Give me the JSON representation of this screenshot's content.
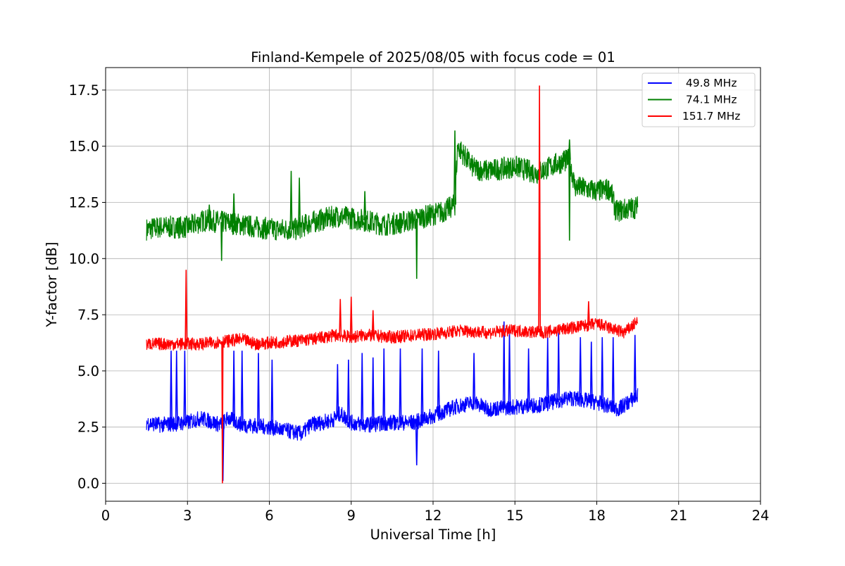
{
  "chart_data": {
    "type": "line",
    "title": "Finland-Kempele of 2025/08/05 with focus code = 01",
    "xlabel": "Universal Time [h]",
    "ylabel": "Y-factor [dB]",
    "xlim": [
      0,
      24
    ],
    "ylim": [
      -0.8,
      18.5
    ],
    "x_ticks": [
      0,
      3,
      6,
      9,
      12,
      15,
      18,
      21,
      24
    ],
    "x_tick_labels": [
      "0",
      "3",
      "6",
      "9",
      "12",
      "15",
      "18",
      "21",
      "24"
    ],
    "y_ticks": [
      0,
      2.5,
      5,
      7.5,
      10,
      12.5,
      15,
      17.5
    ],
    "y_tick_labels": [
      "0.0",
      "2.5",
      "5.0",
      "7.5",
      "10.0",
      "12.5",
      "15.0",
      "17.5"
    ],
    "grid": true,
    "legend_position": "top-right",
    "series": [
      {
        "name": "  49.8 MHz",
        "color": "#0000ff",
        "noise": 0.35,
        "points": [
          [
            1.5,
            2.7
          ],
          [
            2.0,
            2.6
          ],
          [
            3.0,
            2.7
          ],
          [
            3.5,
            2.9
          ],
          [
            4.2,
            2.6
          ],
          [
            4.5,
            2.9
          ],
          [
            5.0,
            2.6
          ],
          [
            6.0,
            2.5
          ],
          [
            7.2,
            2.2
          ],
          [
            7.5,
            2.6
          ],
          [
            8.3,
            2.8
          ],
          [
            8.6,
            3.1
          ],
          [
            9.0,
            2.7
          ],
          [
            9.5,
            2.6
          ],
          [
            10.5,
            2.7
          ],
          [
            11.3,
            2.7
          ],
          [
            12.0,
            3.0
          ],
          [
            12.8,
            3.4
          ],
          [
            13.5,
            3.6
          ],
          [
            14.0,
            3.3
          ],
          [
            15.0,
            3.4
          ],
          [
            16.0,
            3.5
          ],
          [
            17.0,
            3.8
          ],
          [
            18.0,
            3.6
          ],
          [
            18.8,
            3.3
          ],
          [
            19.5,
            3.9
          ]
        ],
        "spikes": [
          [
            2.4,
            5.9
          ],
          [
            2.6,
            5.9
          ],
          [
            2.9,
            5.9
          ],
          [
            4.3,
            0.1
          ],
          [
            4.7,
            5.9
          ],
          [
            5.0,
            5.9
          ],
          [
            5.6,
            5.8
          ],
          [
            6.1,
            5.5
          ],
          [
            8.5,
            5.3
          ],
          [
            8.9,
            5.5
          ],
          [
            9.4,
            5.8
          ],
          [
            9.8,
            5.6
          ],
          [
            10.2,
            6.0
          ],
          [
            10.8,
            6.0
          ],
          [
            11.4,
            0.8
          ],
          [
            11.6,
            6.0
          ],
          [
            12.2,
            5.9
          ],
          [
            13.5,
            5.8
          ],
          [
            14.6,
            7.2
          ],
          [
            14.8,
            6.8
          ],
          [
            15.5,
            6.0
          ],
          [
            16.2,
            6.5
          ],
          [
            16.6,
            6.8
          ],
          [
            17.4,
            6.5
          ],
          [
            17.8,
            6.3
          ],
          [
            18.2,
            6.5
          ],
          [
            18.6,
            6.5
          ],
          [
            19.4,
            6.6
          ]
        ],
        "dips": []
      },
      {
        "name": "  74.1 MHz",
        "color": "#008000",
        "noise": 0.5,
        "points": [
          [
            1.5,
            11.3
          ],
          [
            2.0,
            11.4
          ],
          [
            3.0,
            11.4
          ],
          [
            3.6,
            11.7
          ],
          [
            4.5,
            11.6
          ],
          [
            5.5,
            11.4
          ],
          [
            6.2,
            11.3
          ],
          [
            7.0,
            11.3
          ],
          [
            7.5,
            11.6
          ],
          [
            8.5,
            11.9
          ],
          [
            9.0,
            11.8
          ],
          [
            9.5,
            11.7
          ],
          [
            10.2,
            11.5
          ],
          [
            10.8,
            11.6
          ],
          [
            11.5,
            11.8
          ],
          [
            12.4,
            12.1
          ],
          [
            12.8,
            12.4
          ],
          [
            12.9,
            15.0
          ],
          [
            13.5,
            14.0
          ],
          [
            14.0,
            13.9
          ],
          [
            15.0,
            14.1
          ],
          [
            15.8,
            13.8
          ],
          [
            16.5,
            14.2
          ],
          [
            17.0,
            14.4
          ],
          [
            17.2,
            13.2
          ],
          [
            18.0,
            13.0
          ],
          [
            18.5,
            13.1
          ],
          [
            18.7,
            12.1
          ],
          [
            19.5,
            12.3
          ]
        ],
        "spikes": [
          [
            3.8,
            12.4
          ],
          [
            4.7,
            12.9
          ],
          [
            6.8,
            13.9
          ],
          [
            7.1,
            13.6
          ],
          [
            9.5,
            13.0
          ],
          [
            12.8,
            15.7
          ],
          [
            16.8,
            14.8
          ],
          [
            17.0,
            15.3
          ]
        ],
        "dips": [
          [
            4.25,
            9.9
          ],
          [
            11.4,
            9.1
          ],
          [
            17.0,
            10.8
          ]
        ]
      },
      {
        "name": " 151.7 MHz",
        "color": "#ff0000",
        "noise": 0.28,
        "points": [
          [
            1.5,
            6.2
          ],
          [
            2.5,
            6.2
          ],
          [
            3.5,
            6.2
          ],
          [
            4.2,
            6.3
          ],
          [
            5.0,
            6.4
          ],
          [
            5.5,
            6.2
          ],
          [
            6.5,
            6.3
          ],
          [
            7.5,
            6.4
          ],
          [
            8.5,
            6.6
          ],
          [
            9.0,
            6.5
          ],
          [
            9.5,
            6.6
          ],
          [
            10.5,
            6.5
          ],
          [
            11.5,
            6.6
          ],
          [
            12.5,
            6.7
          ],
          [
            13.0,
            6.8
          ],
          [
            14.0,
            6.7
          ],
          [
            15.0,
            6.8
          ],
          [
            16.0,
            6.7
          ],
          [
            17.0,
            6.9
          ],
          [
            18.0,
            7.1
          ],
          [
            19.0,
            6.7
          ],
          [
            19.5,
            7.2
          ]
        ],
        "spikes": [
          [
            2.95,
            9.5
          ],
          [
            8.6,
            8.2
          ],
          [
            9.0,
            8.3
          ],
          [
            9.8,
            7.7
          ],
          [
            15.9,
            17.7
          ],
          [
            17.7,
            8.1
          ]
        ],
        "dips": [
          [
            4.28,
            0.0
          ]
        ]
      }
    ]
  }
}
